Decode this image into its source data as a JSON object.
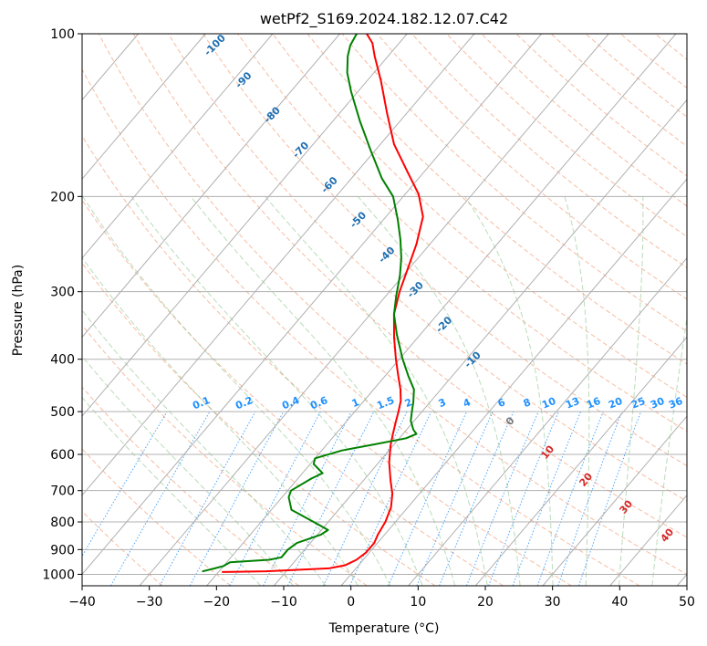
{
  "chart_data": {
    "type": "line",
    "title": "wetPf2_S169.2024.182.12.07.C42",
    "xlabel": "Temperature (°C)",
    "ylabel": "Pressure (hPa)",
    "xlim": [
      -40,
      50
    ],
    "ylim": [
      1050,
      100
    ],
    "y_scale": "log",
    "grid": true,
    "x_ticks": [
      "−40",
      "−30",
      "−20",
      "−10",
      "0",
      "10",
      "20",
      "30",
      "40",
      "50"
    ],
    "y_ticks": [
      {
        "value": 100,
        "label": "100"
      },
      {
        "value": 200,
        "label": "200"
      },
      {
        "value": 300,
        "label": "300"
      },
      {
        "value": 400,
        "label": "400"
      },
      {
        "value": 500,
        "label": "500"
      },
      {
        "value": 600,
        "label": "600"
      },
      {
        "value": 700,
        "label": "700"
      },
      {
        "value": 800,
        "label": "800"
      },
      {
        "value": 900,
        "label": "900"
      },
      {
        "value": 1000,
        "label": "1000"
      }
    ],
    "series": [
      {
        "color": "#ff0000",
        "points": [
          [
            -19.5,
            990
          ],
          [
            -13,
            987
          ],
          [
            -4,
            975
          ],
          [
            -2,
            962
          ],
          [
            -1,
            940
          ],
          [
            -0.5,
            912
          ],
          [
            -0.5,
            875
          ],
          [
            -1,
            845
          ],
          [
            -1.5,
            800
          ],
          [
            -2.5,
            752
          ],
          [
            -4,
            710
          ],
          [
            -6,
            670
          ],
          [
            -8.5,
            620
          ],
          [
            -10.5,
            575
          ],
          [
            -11.5,
            550
          ],
          [
            -12.5,
            525
          ],
          [
            -13.5,
            500
          ],
          [
            -14.5,
            478
          ],
          [
            -16,
            455
          ],
          [
            -18,
            430
          ],
          [
            -20.5,
            400
          ],
          [
            -23.5,
            365
          ],
          [
            -26.5,
            330
          ],
          [
            -28.5,
            300
          ],
          [
            -30,
            275
          ],
          [
            -32,
            245
          ],
          [
            -34.5,
            218
          ],
          [
            -38,
            198
          ],
          [
            -42.5,
            180
          ],
          [
            -48,
            160
          ],
          [
            -53,
            140
          ],
          [
            -58,
            122
          ],
          [
            -62,
            110
          ],
          [
            -64,
            104
          ],
          [
            -65,
            102
          ],
          [
            -66,
            100
          ]
        ]
      },
      {
        "color": "#008000",
        "points": [
          [
            -22.5,
            988
          ],
          [
            -21,
            975
          ],
          [
            -20,
            965
          ],
          [
            -19.5,
            950
          ],
          [
            -14,
            940
          ],
          [
            -12.5,
            930
          ],
          [
            -12.5,
            900
          ],
          [
            -12,
            875
          ],
          [
            -9.5,
            845
          ],
          [
            -9,
            828
          ],
          [
            -11,
            810
          ],
          [
            -17,
            760
          ],
          [
            -19,
            720
          ],
          [
            -19.5,
            700
          ],
          [
            -18,
            665
          ],
          [
            -17,
            650
          ],
          [
            -19.5,
            625
          ],
          [
            -20,
            610
          ],
          [
            -17,
            590
          ],
          [
            -13,
            575
          ],
          [
            -9,
            560
          ],
          [
            -8,
            550
          ],
          [
            -9,
            540
          ],
          [
            -10.5,
            520
          ],
          [
            -11.5,
            500
          ],
          [
            -12.5,
            480
          ],
          [
            -14,
            455
          ],
          [
            -16.5,
            430
          ],
          [
            -19.5,
            400
          ],
          [
            -23.5,
            360
          ],
          [
            -26.5,
            330
          ],
          [
            -28.5,
            305
          ],
          [
            -30.5,
            280
          ],
          [
            -32.5,
            260
          ],
          [
            -35,
            240
          ],
          [
            -38,
            220
          ],
          [
            -41.5,
            200
          ],
          [
            -45.5,
            185
          ],
          [
            -50.5,
            165
          ],
          [
            -56,
            145
          ],
          [
            -61,
            128
          ],
          [
            -64,
            118
          ],
          [
            -66,
            110
          ],
          [
            -67,
            105
          ],
          [
            -67.5,
            100
          ]
        ]
      }
    ],
    "dry_adiabat_labels": [
      "-100",
      "-90",
      "-80",
      "-70",
      "-60",
      "-50",
      "-40",
      "-30",
      "-20",
      "-10"
    ],
    "moist_adiabat_labels": [
      "0",
      "10",
      "20",
      "30",
      "40"
    ],
    "mixing_ratio_labels": [
      "0.1",
      "0.2",
      "0.4",
      "0.6",
      "1",
      "1.5",
      "2",
      "3",
      "4",
      "6",
      "8",
      "10",
      "13",
      "16",
      "20",
      "25",
      "30",
      "36"
    ]
  }
}
